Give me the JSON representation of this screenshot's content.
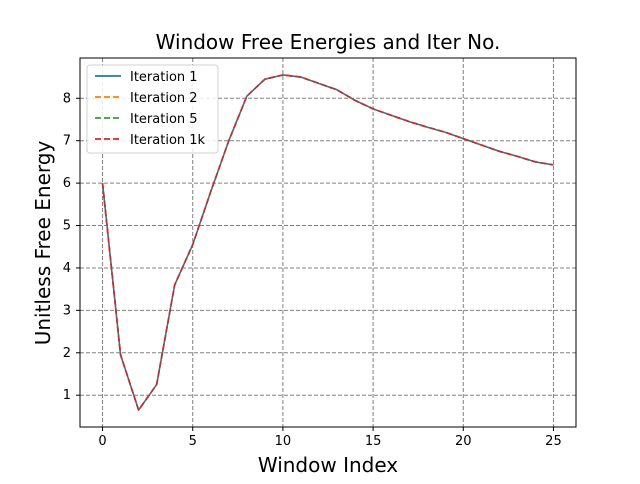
{
  "chart_data": {
    "type": "line",
    "title": "Window Free Energies and Iter No.",
    "xlabel": "Window Index",
    "ylabel": "Unitless Free Energy",
    "xlim": [
      -1.25,
      26.25
    ],
    "ylim": [
      0.25,
      8.95
    ],
    "xticks": [
      0,
      5,
      10,
      15,
      20,
      25
    ],
    "yticks": [
      1,
      2,
      3,
      4,
      5,
      6,
      7,
      8
    ],
    "grid": true,
    "grid_style": "dashed",
    "legend_position": "top-left",
    "x": [
      0,
      1,
      2,
      3,
      4,
      5,
      6,
      7,
      8,
      9,
      10,
      11,
      12,
      13,
      14,
      15,
      16,
      17,
      18,
      19,
      20,
      21,
      22,
      23,
      24,
      25
    ],
    "series": [
      {
        "name": "Iteration 1",
        "color": "#1f77b4",
        "dash": "solid",
        "values": [
          6.0,
          1.95,
          0.65,
          1.25,
          3.6,
          4.55,
          5.8,
          7.0,
          8.05,
          8.45,
          8.55,
          8.5,
          8.35,
          8.2,
          7.95,
          7.75,
          7.6,
          7.45,
          7.32,
          7.2,
          7.05,
          6.9,
          6.75,
          6.63,
          6.5,
          6.43
        ]
      },
      {
        "name": "Iteration 2",
        "color": "#ff7f0e",
        "dash": "dashed",
        "values": [
          6.0,
          1.95,
          0.65,
          1.25,
          3.6,
          4.55,
          5.8,
          7.0,
          8.05,
          8.45,
          8.55,
          8.5,
          8.35,
          8.2,
          7.95,
          7.75,
          7.6,
          7.45,
          7.32,
          7.2,
          7.05,
          6.9,
          6.75,
          6.63,
          6.5,
          6.43
        ]
      },
      {
        "name": "Iteration 5",
        "color": "#2ca02c",
        "dash": "dashed",
        "values": [
          6.0,
          1.95,
          0.65,
          1.25,
          3.6,
          4.55,
          5.8,
          7.0,
          8.05,
          8.45,
          8.55,
          8.5,
          8.35,
          8.2,
          7.95,
          7.75,
          7.6,
          7.45,
          7.32,
          7.2,
          7.05,
          6.9,
          6.75,
          6.63,
          6.5,
          6.43
        ]
      },
      {
        "name": "Iteration 1k",
        "color": "#d62728",
        "dash": "dashed",
        "values": [
          6.0,
          1.95,
          0.65,
          1.25,
          3.6,
          4.55,
          5.8,
          7.0,
          8.05,
          8.45,
          8.55,
          8.5,
          8.35,
          8.2,
          7.95,
          7.75,
          7.6,
          7.45,
          7.32,
          7.2,
          7.05,
          6.9,
          6.75,
          6.63,
          6.5,
          6.43
        ]
      }
    ]
  }
}
